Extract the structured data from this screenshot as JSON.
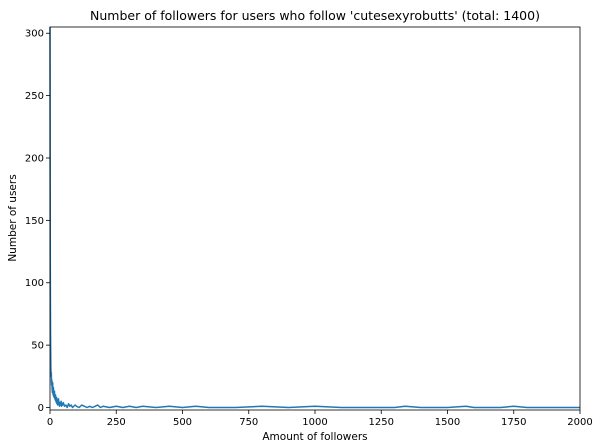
{
  "chart_data": {
    "type": "line",
    "title": "Number of followers for users who follow 'cutesexyrobutts' (total: 1400)",
    "xlabel": "Amount of followers",
    "ylabel": "Number of users",
    "xlim": [
      0,
      2000
    ],
    "ylim": [
      -2,
      305
    ],
    "xticks": [
      0,
      250,
      500,
      750,
      1000,
      1250,
      1500,
      1750,
      2000
    ],
    "yticks": [
      0,
      50,
      100,
      150,
      200,
      250,
      300
    ],
    "grid": false,
    "line_color": "#1f77b4",
    "series": [
      {
        "x": [
          0,
          1,
          2,
          3,
          4,
          5,
          6,
          7,
          8,
          9,
          10,
          11,
          12,
          13,
          14,
          15,
          16,
          17,
          18,
          19,
          20,
          21,
          22,
          23,
          24,
          25,
          26,
          27,
          28,
          29,
          30,
          32,
          34,
          36,
          38,
          40,
          42,
          44,
          46,
          48,
          50,
          55,
          60,
          65,
          70,
          75,
          80,
          85,
          90,
          95,
          100,
          110,
          120,
          130,
          140,
          150,
          160,
          170,
          180,
          190,
          200,
          225,
          250,
          275,
          300,
          325,
          350,
          400,
          450,
          500,
          550,
          600,
          700,
          800,
          900,
          1000,
          1100,
          1200,
          1300,
          1340,
          1400,
          1500,
          1570,
          1600,
          1700,
          1750,
          1800,
          1900,
          2000
        ],
        "y": [
          305,
          120,
          60,
          35,
          25,
          28,
          18,
          22,
          15,
          12,
          20,
          14,
          10,
          16,
          9,
          11,
          8,
          13,
          7,
          9,
          6,
          10,
          5,
          7,
          4,
          8,
          3,
          5,
          6,
          2,
          4,
          7,
          3,
          1,
          4,
          2,
          5,
          1,
          3,
          2,
          4,
          1,
          2,
          0,
          3,
          1,
          2,
          0,
          1,
          2,
          1,
          0,
          2,
          1,
          0,
          1,
          0,
          1,
          2,
          0,
          1,
          0,
          1,
          0,
          1,
          0,
          1,
          0,
          1,
          0,
          1,
          0,
          0,
          1,
          0,
          1,
          0,
          0,
          0,
          1,
          0,
          0,
          1,
          0,
          0,
          1,
          0,
          0,
          0
        ]
      }
    ]
  }
}
